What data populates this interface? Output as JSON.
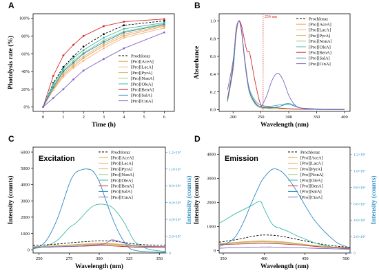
{
  "colors": {
    "Prochloraz": "#000000",
    "[Pro][AceA]": "#f0a04b",
    "[Pro][LacA]": "#f4b183",
    "[Pro][PyrA]": "#d9b56a",
    "[Pro][NonA]": "#9ccb7b",
    "[Pro][OleA]": "#3cb8a8",
    "[Pro][BenA]": "#d62728",
    "[Pro][SalA]": "#2b86c5",
    "[Pro][CinA]": "#8064c4",
    "right_axis": "#2f8fc6"
  },
  "chart_data": [
    {
      "panel": "A",
      "type": "line",
      "xlabel": "Time (h)",
      "ylabel": "Photolysis rate (%)",
      "xlim": [
        -0.5,
        6.5
      ],
      "ylim": [
        -0.05,
        1.05
      ],
      "xticks": [
        0,
        1,
        2,
        3,
        4,
        5,
        6
      ],
      "yticks": [
        0,
        0.2,
        0.4,
        0.6,
        0.8,
        1.0
      ],
      "ytick_labels": [
        "0%",
        "20%",
        "40%",
        "60%",
        "80%",
        "100%"
      ],
      "legend_position": "lower-right",
      "x": [
        0,
        0.5,
        1,
        1.5,
        2,
        3,
        4,
        6
      ],
      "series": [
        {
          "name": "Prochloraz",
          "dashed": true,
          "values": [
            0,
            0.27,
            0.45,
            0.57,
            0.68,
            0.82,
            0.92,
            0.97
          ]
        },
        {
          "name": "[Pro][AceA]",
          "values": [
            0,
            0.2,
            0.36,
            0.46,
            0.55,
            0.69,
            0.8,
            0.91
          ]
        },
        {
          "name": "[Pro][LacA]",
          "values": [
            0,
            0.19,
            0.34,
            0.44,
            0.52,
            0.66,
            0.78,
            0.89
          ]
        },
        {
          "name": "[Pro][PyrA]",
          "values": [
            0,
            0.21,
            0.38,
            0.48,
            0.57,
            0.71,
            0.82,
            0.92
          ]
        },
        {
          "name": "[Pro][NonA]",
          "values": [
            0,
            0.24,
            0.41,
            0.52,
            0.61,
            0.75,
            0.85,
            0.94
          ]
        },
        {
          "name": "[Pro][OleA]",
          "values": [
            0,
            0.26,
            0.43,
            0.55,
            0.64,
            0.78,
            0.88,
            0.95
          ]
        },
        {
          "name": "[Pro][BenA]",
          "values": [
            0,
            0.35,
            0.58,
            0.7,
            0.8,
            0.91,
            0.96,
            0.99
          ]
        },
        {
          "name": "[Pro][SalA]",
          "values": [
            0,
            0.22,
            0.4,
            0.5,
            0.6,
            0.73,
            0.84,
            0.93
          ]
        },
        {
          "name": "[Pro][CinA]",
          "values": [
            0,
            0.1,
            0.2,
            0.31,
            0.41,
            0.54,
            0.66,
            0.84
          ]
        }
      ]
    },
    {
      "panel": "B",
      "type": "line",
      "xlabel": "Wavelength (nm)",
      "ylabel": "Absorbance",
      "xlim": [
        175,
        410
      ],
      "ylim": [
        -0.02,
        1.08
      ],
      "xticks": [
        200,
        250,
        300,
        350,
        400
      ],
      "yticks": [
        0.0,
        0.2,
        0.4,
        0.6,
        0.8,
        1.0
      ],
      "ytick_labels": [
        "0.0",
        "0.2",
        "0.4",
        "0.6",
        "0.8",
        "1.0"
      ],
      "legend_position": "upper-right",
      "annotation": {
        "text": "254 nm",
        "x": 254
      },
      "x": [
        190,
        200,
        205,
        210,
        215,
        220,
        225,
        230,
        240,
        250,
        260,
        270,
        280,
        290,
        300,
        310,
        320,
        340,
        360,
        400
      ],
      "series": [
        {
          "name": "Prochloraz",
          "dashed": true,
          "values": [
            0.09,
            0.45,
            0.82,
            1.0,
            0.9,
            0.6,
            0.35,
            0.18,
            0.06,
            0.02,
            0.015,
            0.012,
            0.01,
            0.008,
            0.006,
            0.005,
            0.004,
            0.003,
            0.002,
            0.001
          ]
        },
        {
          "name": "[Pro][AceA]",
          "values": [
            0.09,
            0.46,
            0.83,
            1.0,
            0.89,
            0.6,
            0.35,
            0.18,
            0.06,
            0.02,
            0.015,
            0.012,
            0.01,
            0.008,
            0.006,
            0.005,
            0.004,
            0.003,
            0.002,
            0.001
          ]
        },
        {
          "name": "[Pro][LacA]",
          "values": [
            0.09,
            0.46,
            0.83,
            1.0,
            0.89,
            0.59,
            0.34,
            0.18,
            0.06,
            0.02,
            0.015,
            0.012,
            0.01,
            0.008,
            0.006,
            0.005,
            0.004,
            0.003,
            0.002,
            0.001
          ]
        },
        {
          "name": "[Pro][PyrA]",
          "values": [
            0.1,
            0.47,
            0.84,
            1.0,
            0.9,
            0.61,
            0.36,
            0.19,
            0.07,
            0.03,
            0.02,
            0.015,
            0.012,
            0.01,
            0.008,
            0.006,
            0.005,
            0.003,
            0.002,
            0.001
          ]
        },
        {
          "name": "[Pro][NonA]",
          "values": [
            0.09,
            0.45,
            0.82,
            1.0,
            0.9,
            0.6,
            0.35,
            0.18,
            0.06,
            0.02,
            0.015,
            0.012,
            0.01,
            0.008,
            0.006,
            0.005,
            0.004,
            0.003,
            0.002,
            0.001
          ]
        },
        {
          "name": "[Pro][OleA]",
          "values": [
            0.1,
            0.47,
            0.83,
            1.0,
            0.9,
            0.62,
            0.38,
            0.22,
            0.1,
            0.05,
            0.04,
            0.04,
            0.05,
            0.06,
            0.07,
            0.05,
            0.02,
            0.01,
            0.005,
            0.002
          ]
        },
        {
          "name": "[Pro][BenA]",
          "values": [
            0.12,
            0.5,
            0.88,
            1.0,
            0.95,
            0.8,
            0.66,
            0.63,
            0.3,
            0.05,
            0.03,
            0.025,
            0.02,
            0.015,
            0.01,
            0.008,
            0.005,
            0.003,
            0.002,
            0.001
          ]
        },
        {
          "name": "[Pro][SalA]",
          "values": [
            0.1,
            0.47,
            0.84,
            1.0,
            0.9,
            0.61,
            0.36,
            0.19,
            0.07,
            0.03,
            0.02,
            0.02,
            0.03,
            0.05,
            0.06,
            0.04,
            0.02,
            0.01,
            0.004,
            0.001
          ]
        },
        {
          "name": "[Pro][CinA]",
          "values": [
            0.22,
            0.55,
            0.85,
            1.0,
            0.9,
            0.62,
            0.38,
            0.2,
            0.08,
            0.04,
            0.15,
            0.33,
            0.41,
            0.33,
            0.16,
            0.06,
            0.02,
            0.005,
            0.002,
            0.001
          ]
        }
      ]
    },
    {
      "panel": "C",
      "inset_title": "Excitation",
      "type": "line",
      "xlabel": "Wavelength (nm)",
      "ylabel": "Intensity (counts)",
      "ylabel_right": "Intensity (counts)",
      "xlim": [
        245,
        355
      ],
      "ylim": [
        -200,
        6300
      ],
      "ylim_right": [
        0,
        126000
      ],
      "xticks": [
        250,
        275,
        300,
        325,
        350
      ],
      "yticks": [
        0,
        1000,
        2000,
        3000,
        4000,
        5000,
        6000
      ],
      "yticks_right": [
        0,
        20000,
        40000,
        60000,
        80000,
        100000,
        120000
      ],
      "ytick_labels_right": [
        "0",
        "2.0×10⁴",
        "4.0×10⁴",
        "6.0×10⁴",
        "8.0×10⁴",
        "1.0×10⁵",
        "1.2×10⁵"
      ],
      "legend_position": "upper-right",
      "x": [
        245,
        255,
        265,
        275,
        280,
        285,
        290,
        295,
        300,
        305,
        310,
        315,
        320,
        325,
        330,
        340,
        350,
        355
      ],
      "series": [
        {
          "name": "Prochloraz",
          "dashed": true,
          "values": [
            270,
            300,
            350,
            420,
            450,
            480,
            500,
            530,
            550,
            550,
            540,
            500,
            460,
            400,
            350,
            300,
            290,
            290
          ]
        },
        {
          "name": "[Pro][AceA]",
          "values": [
            200,
            220,
            260,
            300,
            320,
            340,
            360,
            380,
            400,
            400,
            380,
            350,
            320,
            280,
            250,
            220,
            200,
            200
          ]
        },
        {
          "name": "[Pro][LacA]",
          "values": [
            180,
            200,
            230,
            270,
            290,
            310,
            320,
            340,
            350,
            350,
            340,
            310,
            280,
            250,
            220,
            190,
            180,
            180
          ]
        },
        {
          "name": "[Pro][PyrA]",
          "values": [
            190,
            210,
            240,
            280,
            300,
            320,
            340,
            360,
            370,
            370,
            360,
            330,
            300,
            260,
            230,
            200,
            190,
            190
          ]
        },
        {
          "name": "[Pro][NonA]",
          "values": [
            170,
            190,
            220,
            250,
            270,
            290,
            300,
            310,
            320,
            320,
            310,
            290,
            260,
            230,
            200,
            180,
            170,
            170
          ]
        },
        {
          "name": "[Pro][OleA]",
          "right_axis": true,
          "values": [
            5000,
            8000,
            15000,
            30000,
            35000,
            42000,
            50000,
            56000,
            58000,
            57500,
            55000,
            48000,
            38000,
            25000,
            13000,
            5000,
            2500,
            2000
          ]
        },
        {
          "name": "[Pro][BenA]",
          "values": [
            150,
            160,
            180,
            200,
            210,
            220,
            230,
            240,
            250,
            250,
            240,
            220,
            200,
            180,
            160,
            150,
            150,
            150
          ]
        },
        {
          "name": "[Pro][SalA]",
          "right_axis": true,
          "values": [
            5000,
            13000,
            40000,
            82000,
            95000,
            99000,
            100000,
            97000,
            85000,
            65000,
            45000,
            28000,
            15000,
            6000,
            3000,
            1500,
            1000,
            1000
          ]
        },
        {
          "name": "[Pro][CinA]",
          "values": [
            150,
            160,
            180,
            200,
            210,
            230,
            260,
            290,
            320,
            380,
            600,
            550,
            430,
            320,
            240,
            200,
            190,
            190
          ]
        }
      ]
    },
    {
      "panel": "D",
      "inset_title": "Emission",
      "type": "line",
      "xlabel": "Wavelength (nm)",
      "ylabel": "Intensity (counts)",
      "ylabel_right": "Intensity (counts)",
      "xlim": [
        345,
        505
      ],
      "ylim": [
        -100,
        4300
      ],
      "ylim_right": [
        0,
        129000
      ],
      "xticks": [
        350,
        400,
        450,
        500
      ],
      "yticks": [
        0,
        1000,
        2000,
        3000,
        4000
      ],
      "yticks_right": [
        0,
        20000,
        40000,
        60000,
        80000,
        100000,
        120000
      ],
      "ytick_labels_right": [
        "0",
        "2.0×10⁴",
        "4.0×10⁴",
        "6.0×10⁴",
        "8.0×10⁴",
        "1.0×10⁵",
        "1.2×10⁵"
      ],
      "legend_position": "upper-right",
      "x": [
        345,
        355,
        365,
        375,
        385,
        395,
        400,
        410,
        420,
        430,
        440,
        450,
        460,
        470,
        480,
        490,
        500,
        505
      ],
      "series": [
        {
          "name": "Prochloraz",
          "dashed": true,
          "values": [
            350,
            400,
            450,
            520,
            590,
            640,
            650,
            640,
            600,
            540,
            470,
            400,
            330,
            270,
            220,
            180,
            150,
            140
          ]
        },
        {
          "name": "[Pro][AceA]",
          "values": [
            300,
            320,
            340,
            370,
            390,
            400,
            400,
            390,
            370,
            340,
            300,
            260,
            220,
            190,
            160,
            140,
            120,
            110
          ]
        },
        {
          "name": "[Pro][LacA]",
          "values": [
            280,
            300,
            320,
            340,
            360,
            370,
            370,
            360,
            340,
            310,
            280,
            240,
            200,
            170,
            150,
            130,
            110,
            100
          ]
        },
        {
          "name": "[Pro][PyrA]",
          "values": [
            290,
            310,
            330,
            350,
            370,
            380,
            380,
            370,
            350,
            320,
            290,
            250,
            210,
            180,
            150,
            130,
            110,
            100
          ]
        },
        {
          "name": "[Pro][NonA]",
          "values": [
            270,
            290,
            310,
            330,
            350,
            360,
            360,
            350,
            330,
            300,
            270,
            230,
            200,
            170,
            140,
            120,
            100,
            90
          ]
        },
        {
          "name": "[Pro][OleA]",
          "right_axis": true,
          "values": [
            36000,
            42000,
            48000,
            53000,
            58000,
            63000,
            54000,
            35000,
            30000,
            26000,
            21000,
            17000,
            13000,
            10000,
            8000,
            6000,
            5000,
            4500
          ]
        },
        {
          "name": "[Pro][BenA]",
          "values": [
            250,
            260,
            270,
            280,
            290,
            300,
            300,
            290,
            280,
            260,
            240,
            210,
            180,
            150,
            130,
            110,
            100,
            90
          ]
        },
        {
          "name": "[Pro][SalA]",
          "right_axis": true,
          "values": [
            8000,
            12000,
            20000,
            38000,
            62000,
            84000,
            92000,
            102000,
            100000,
            90000,
            75000,
            58000,
            42000,
            30000,
            20000,
            12000,
            8000,
            6000
          ]
        },
        {
          "name": "[Pro][CinA]",
          "values": [
            100,
            110,
            120,
            130,
            140,
            150,
            150,
            150,
            140,
            130,
            120,
            110,
            100,
            90,
            80,
            70,
            60,
            55
          ]
        }
      ]
    }
  ]
}
